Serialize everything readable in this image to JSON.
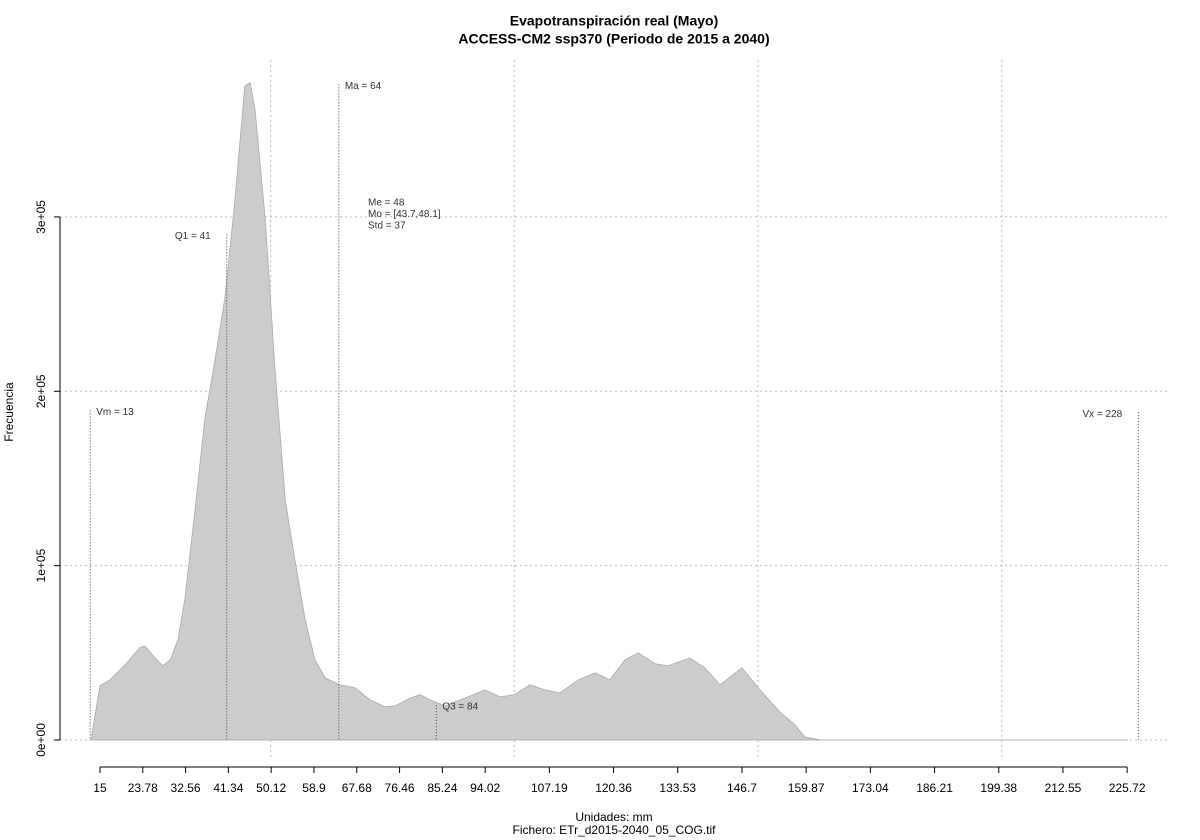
{
  "chart_data": {
    "type": "area",
    "title": "Evapotranspiración real (Mayo)",
    "subtitle": "ACCESS-CM2 ssp370 (Periodo de 2015 a 2040)",
    "xlabel": "Unidades: mm",
    "caption": "Fichero: ETr_d2015-2040_05_COG.tif",
    "ylabel": "Frecuencia",
    "color": "#cccccc",
    "x": [
      13.15,
      15,
      17.05,
      20.1,
      23.2,
      24.2,
      26.3,
      27.9,
      29.4,
      31,
      32.4,
      34.5,
      36.5,
      38.6,
      40.6,
      42.7,
      44.7,
      45.8,
      46.8,
      48.9,
      50.9,
      53,
      55,
      57.1,
      59.1,
      61.2,
      64.2,
      67.3,
      70.4,
      73.5,
      75.5,
      78.6,
      80.7,
      82.7,
      85.8,
      88.9,
      94,
      97.1,
      100.1,
      103.2,
      106.3,
      109.4,
      113.1,
      116.6,
      119.6,
      122.7,
      125.4,
      128.9,
      131.5,
      136,
      139.1,
      142.2,
      146.7,
      150.4,
      154.5,
      157.6,
      159.6,
      162.7,
      225.9
    ],
    "values": [
      0,
      31000,
      34500,
      43000,
      53000,
      54000,
      47000,
      42500,
      46000,
      57500,
      80500,
      132000,
      184000,
      218000,
      253000,
      310000,
      375000,
      377000,
      362000,
      299000,
      213000,
      138000,
      103000,
      69000,
      46000,
      35600,
      31600,
      30000,
      23000,
      19000,
      19500,
      24000,
      26000,
      23000,
      19500,
      23000,
      28700,
      24700,
      26000,
      31600,
      28700,
      27000,
      34500,
      38500,
      34500,
      46000,
      50000,
      43700,
      42500,
      47000,
      41400,
      31600,
      41400,
      28700,
      16000,
      8600,
      1700,
      0,
      0
    ],
    "xlim": [
      6.8,
      234.1
    ],
    "ylim": [
      -11500,
      390000
    ],
    "xticks": [
      15.0,
      23.78,
      32.56,
      41.34,
      50.12,
      58.9,
      67.68,
      76.46,
      85.24,
      94.02,
      107.19,
      120.36,
      133.53,
      146.7,
      159.87,
      173.04,
      186.21,
      199.38,
      212.55,
      225.72
    ],
    "xgrid": [
      50,
      100,
      150,
      200
    ],
    "yticks": [
      {
        "value": 0,
        "label": "0e+00"
      },
      {
        "value": 100000,
        "label": "1e+05"
      },
      {
        "value": 200000,
        "label": "2e+05"
      },
      {
        "value": 300000,
        "label": "3e+05"
      }
    ],
    "grid": true,
    "annotations": [
      {
        "label": "Vm = 13",
        "x": 13,
        "y": 189000,
        "side": "right"
      },
      {
        "label": "Q1 = 41",
        "x": 41,
        "y": 290000,
        "side": "left"
      },
      {
        "label": "Ma = 64",
        "x": 64,
        "y": 376000,
        "side": "right"
      },
      {
        "label": "Q3 = 84",
        "x": 84,
        "y": 20000,
        "side": "right"
      },
      {
        "label": "Vx = 228",
        "x": 228,
        "y": 188000,
        "side": "left"
      }
    ],
    "stats": [
      "Me = 48",
      "Mo = [43.7,48.1]",
      "Std = 37"
    ]
  }
}
